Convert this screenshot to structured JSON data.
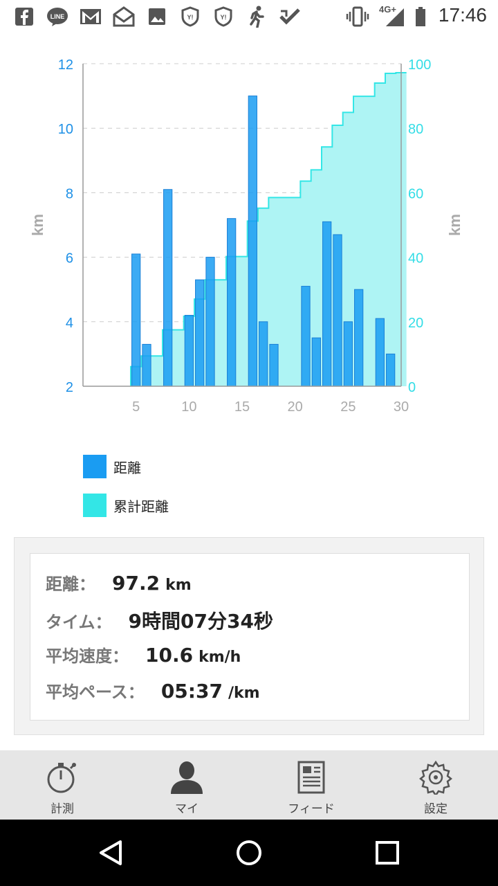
{
  "status_bar": {
    "time": "17:46",
    "network": "4G+",
    "icons": [
      "facebook-icon",
      "line-icon",
      "gmail-icon",
      "yahoo-mail-icon",
      "gallery-icon",
      "yahoo-shield-icon",
      "yahoo-shield-icon",
      "runner-icon",
      "checkmark-app-icon",
      "vibrate-icon",
      "signal-icon",
      "battery-icon"
    ]
  },
  "chart_data": {
    "type": "bar",
    "x_ticks": [
      5,
      10,
      15,
      20,
      25,
      30
    ],
    "x_range": [
      0,
      30
    ],
    "y_left": {
      "label": "km",
      "range": [
        2,
        12
      ],
      "ticks": [
        2,
        4,
        6,
        8,
        10,
        12
      ],
      "color": "#1e90e6"
    },
    "y_right": {
      "label": "km",
      "range": [
        0,
        100
      ],
      "ticks": [
        0,
        20,
        40,
        60,
        80,
        100
      ],
      "color": "#33dde6"
    },
    "grid": true,
    "series": [
      {
        "name": "距離",
        "color": "#1a9cf2",
        "axis": "left",
        "x": [
          5,
          6,
          8,
          10,
          11,
          12,
          14,
          16,
          17,
          18,
          21,
          22,
          23,
          24,
          25,
          26,
          28,
          29
        ],
        "values": [
          6.1,
          3.3,
          8.1,
          4.2,
          5.3,
          6.0,
          7.2,
          11.0,
          4.0,
          3.3,
          5.1,
          3.5,
          7.1,
          6.7,
          4.0,
          5.0,
          4.1,
          3.0
        ]
      },
      {
        "name": "累計距離",
        "color": "#33e6e6",
        "axis": "right",
        "x": [
          5,
          6,
          7,
          8,
          9,
          10,
          11,
          12,
          13,
          14,
          15,
          16,
          17,
          18,
          19,
          20,
          21,
          22,
          23,
          24,
          25,
          26,
          27,
          28,
          29,
          30
        ],
        "values": [
          6.1,
          9.4,
          9.4,
          17.5,
          17.5,
          21.7,
          27.0,
          33.0,
          33.0,
          40.2,
          40.2,
          51.2,
          55.2,
          58.5,
          58.5,
          58.5,
          63.6,
          67.1,
          74.2,
          80.9,
          84.9,
          89.9,
          89.9,
          94.0,
          97.0,
          97.2
        ]
      }
    ]
  },
  "legend": {
    "items": [
      {
        "label": "距離",
        "color": "#1a9cf2"
      },
      {
        "label": "累計距離",
        "color": "#33e6e6"
      }
    ]
  },
  "stats": {
    "distance": {
      "label": "距離：",
      "value": "97.2",
      "unit": "km"
    },
    "time": {
      "label": "タイム：",
      "value": "9時間07分34秒"
    },
    "avg_speed": {
      "label": "平均速度：",
      "value": "10.6",
      "unit": "km/h"
    },
    "avg_pace": {
      "label": "平均ペース：",
      "value": "05:37",
      "unit": "/km"
    }
  },
  "bottom_nav": {
    "items": [
      {
        "label": "計測",
        "icon": "stopwatch-icon"
      },
      {
        "label": "マイ",
        "icon": "person-icon"
      },
      {
        "label": "フィード",
        "icon": "feed-icon"
      },
      {
        "label": "設定",
        "icon": "gear-icon"
      }
    ]
  },
  "system_nav": {
    "buttons": [
      "back-icon",
      "home-icon",
      "recents-icon"
    ]
  }
}
